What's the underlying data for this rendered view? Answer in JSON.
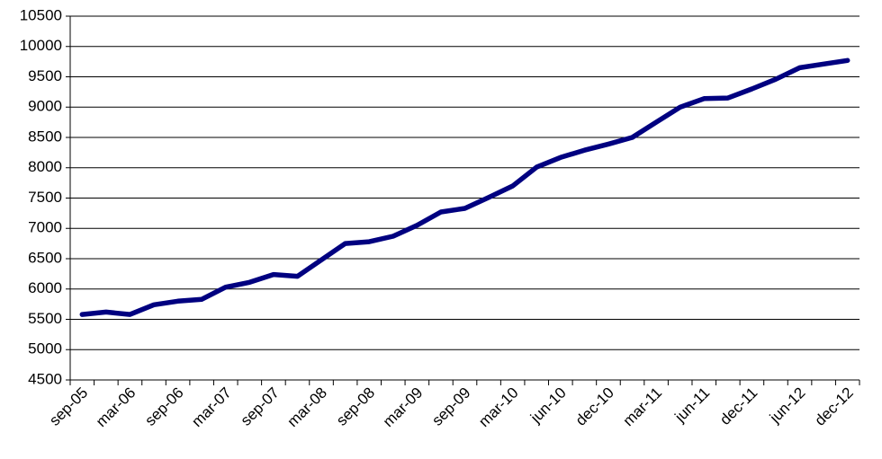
{
  "chart_data": {
    "type": "line",
    "categories": [
      "sep-05",
      null,
      "mar-06",
      null,
      "sep-06",
      null,
      "mar-07",
      null,
      "sep-07",
      null,
      "mar-08",
      null,
      "sep-08",
      null,
      "mar-09",
      null,
      "sep-09",
      null,
      "mar-10",
      null,
      "jun-10",
      null,
      "dec-10",
      null,
      "mar-11",
      null,
      "jun-11",
      null,
      "dec-11",
      null,
      "jun-12",
      null,
      "dec-12"
    ],
    "values": [
      5580,
      5620,
      5580,
      5740,
      5800,
      5830,
      6030,
      6110,
      6240,
      6210,
      6480,
      6750,
      6780,
      6870,
      7050,
      7270,
      7330,
      7510,
      7700,
      8010,
      8170,
      8290,
      8390,
      8500,
      8750,
      9000,
      9140,
      9150,
      9300,
      9460,
      9650,
      9710,
      9770
    ],
    "color": "#000080",
    "ylim": [
      4500,
      10500
    ],
    "yticks": [
      4500,
      5000,
      5500,
      6000,
      6500,
      7000,
      7500,
      8000,
      8500,
      9000,
      9500,
      10000,
      10500
    ],
    "grid": true
  }
}
